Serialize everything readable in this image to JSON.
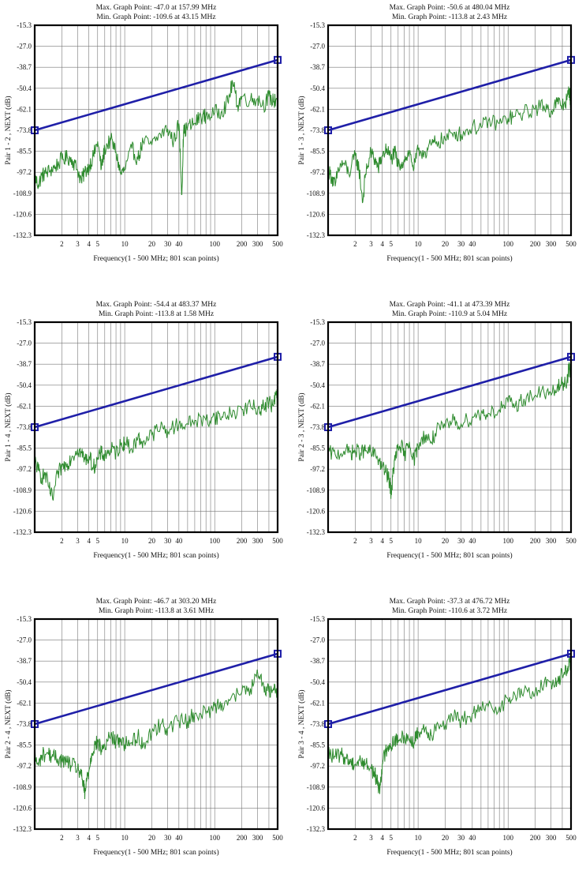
{
  "chart_data": [
    {
      "type": "line",
      "title_max": "Max. Graph Point: -47.0 at 157.99 MHz",
      "title_min": "Min. Graph Point: -109.6 at 43.15 MHz",
      "ylabel": "Pair 1 - 2 , NEXT (dB)",
      "xlabel": "Frequency(1 - 500 MHz; 801 scan points)",
      "xscale": "log",
      "xlim": [
        1,
        500
      ],
      "ylim": [
        -132.3,
        -15.3
      ],
      "yticks": [
        "-15.3",
        "-27.0",
        "-38.7",
        "-50.4",
        "-62.1",
        "-73.8",
        "-85.5",
        "-97.2",
        "-108.9",
        "-120.6",
        "-132.3"
      ],
      "xticks": [
        "2",
        "3",
        "4",
        "5",
        "10",
        "20",
        "30",
        "40",
        "100",
        "200",
        "300",
        "500"
      ],
      "series": [
        {
          "kind": "limit",
          "color": "#1f1fa8",
          "x": [
            1,
            500
          ],
          "y": [
            -73.8,
            -34.6
          ]
        },
        {
          "kind": "measured",
          "color": "#2e8b2e",
          "x": [
            1,
            1.1,
            1.2,
            1.3,
            1.5,
            1.7,
            2,
            2.3,
            2.6,
            3,
            3.3,
            3.6,
            4,
            4.5,
            5,
            5.5,
            6,
            7,
            8,
            9,
            10,
            12,
            14,
            16,
            20,
            25,
            30,
            35,
            40,
            43.15,
            45,
            50,
            60,
            70,
            80,
            100,
            120,
            140,
            157.99,
            180,
            200,
            250,
            300,
            350,
            400,
            450,
            500
          ],
          "y": [
            -100,
            -104,
            -99,
            -98,
            -96,
            -94,
            -90,
            -89,
            -90,
            -96,
            -102,
            -97,
            -94,
            -88,
            -80,
            -95,
            -84,
            -79,
            -86,
            -98,
            -96,
            -84,
            -90,
            -80,
            -82,
            -76,
            -73,
            -80,
            -70,
            -109.6,
            -75,
            -72,
            -70,
            -66,
            -66,
            -64,
            -63,
            -58,
            -47,
            -60,
            -55,
            -57,
            -56,
            -60,
            -55,
            -58,
            -55
          ]
        }
      ]
    },
    {
      "type": "line",
      "title_max": "Max. Graph Point: -50.6 at 480.04 MHz",
      "title_min": "Min. Graph Point: -113.8 at 2.43 MHz",
      "ylabel": "Pair 1 - 3 , NEXT (dB)",
      "xlabel": "Frequency(1 - 500 MHz; 801 scan points)",
      "xscale": "log",
      "xlim": [
        1,
        500
      ],
      "ylim": [
        -132.3,
        -15.3
      ],
      "yticks": [
        "-15.3",
        "-27.0",
        "-38.7",
        "-50.4",
        "-62.1",
        "-73.8",
        "-85.5",
        "-97.2",
        "-108.9",
        "-120.6",
        "-132.3"
      ],
      "xticks": [
        "2",
        "3",
        "4",
        "5",
        "10",
        "20",
        "30",
        "40",
        "100",
        "200",
        "300",
        "500"
      ],
      "series": [
        {
          "kind": "limit",
          "color": "#1f1fa8",
          "x": [
            1,
            500
          ],
          "y": [
            -73.8,
            -34.6
          ]
        },
        {
          "kind": "measured",
          "color": "#2e8b2e",
          "x": [
            1,
            1.1,
            1.2,
            1.3,
            1.5,
            1.7,
            2,
            2.2,
            2.43,
            2.6,
            3,
            3.3,
            3.6,
            4,
            4.5,
            5,
            5.5,
            6,
            7,
            8,
            9,
            10,
            12,
            14,
            16,
            20,
            25,
            30,
            40,
            50,
            60,
            80,
            100,
            120,
            150,
            200,
            250,
            300,
            350,
            400,
            450,
            480.04,
            500
          ],
          "y": [
            -96,
            -100,
            -105,
            -95,
            -92,
            -98,
            -88,
            -95,
            -113.8,
            -98,
            -86,
            -90,
            -95,
            -88,
            -84,
            -90,
            -86,
            -94,
            -90,
            -86,
            -95,
            -85,
            -86,
            -82,
            -80,
            -79,
            -75,
            -76,
            -72,
            -72,
            -69,
            -70,
            -67,
            -66,
            -64,
            -62,
            -60,
            -63,
            -58,
            -60,
            -57,
            -50.6,
            -62
          ]
        }
      ]
    },
    {
      "type": "line",
      "title_max": "Max. Graph Point: -54.4 at 483.37 MHz",
      "title_min": "Min. Graph Point: -113.8 at 1.58 MHz",
      "ylabel": "Pair 1 - 4 , NEXT (dB)",
      "xlabel": "Frequency(1 - 500 MHz; 801 scan points)",
      "xscale": "log",
      "xlim": [
        1,
        500
      ],
      "ylim": [
        -132.3,
        -15.3
      ],
      "yticks": [
        "-15.3",
        "-27.0",
        "-38.7",
        "-50.4",
        "-62.1",
        "-73.8",
        "-85.5",
        "-97.2",
        "-108.9",
        "-120.6",
        "-132.3"
      ],
      "xticks": [
        "2",
        "3",
        "4",
        "5",
        "10",
        "20",
        "30",
        "40",
        "100",
        "200",
        "300",
        "500"
      ],
      "series": [
        {
          "kind": "limit",
          "color": "#1f1fa8",
          "x": [
            1,
            500
          ],
          "y": [
            -73.8,
            -34.6
          ]
        },
        {
          "kind": "measured",
          "color": "#2e8b2e",
          "x": [
            1,
            1.1,
            1.2,
            1.3,
            1.45,
            1.58,
            1.8,
            2,
            2.3,
            2.6,
            3,
            3.3,
            3.6,
            4,
            4.5,
            5,
            5.5,
            6,
            7,
            8,
            9,
            10,
            12,
            14,
            16,
            20,
            25,
            30,
            40,
            50,
            60,
            80,
            100,
            120,
            150,
            200,
            250,
            300,
            350,
            400,
            450,
            483.37,
            500
          ],
          "y": [
            -92,
            -98,
            -102,
            -100,
            -108,
            -113.8,
            -100,
            -96,
            -94,
            -90,
            -86,
            -88,
            -92,
            -90,
            -96,
            -92,
            -88,
            -90,
            -86,
            -88,
            -84,
            -82,
            -86,
            -80,
            -82,
            -78,
            -74,
            -76,
            -72,
            -72,
            -70,
            -70,
            -68,
            -68,
            -66,
            -64,
            -62,
            -64,
            -62,
            -60,
            -62,
            -54.4,
            -60
          ]
        }
      ]
    },
    {
      "type": "line",
      "title_max": "Max. Graph Point: -41.1 at 473.39 MHz",
      "title_min": "Min. Graph Point: -110.9 at 5.04 MHz",
      "ylabel": "Pair 2 - 3 , NEXT (dB)",
      "xlabel": "Frequency(1 - 500 MHz; 801 scan points)",
      "xscale": "log",
      "xlim": [
        1,
        500
      ],
      "ylim": [
        -132.3,
        -15.3
      ],
      "yticks": [
        "-15.3",
        "-27.0",
        "-38.7",
        "-50.4",
        "-62.1",
        "-73.8",
        "-85.5",
        "-97.2",
        "-108.9",
        "-120.6",
        "-132.3"
      ],
      "xticks": [
        "2",
        "3",
        "4",
        "5",
        "10",
        "20",
        "30",
        "40",
        "100",
        "200",
        "300",
        "500"
      ],
      "series": [
        {
          "kind": "limit",
          "color": "#1f1fa8",
          "x": [
            1,
            500
          ],
          "y": [
            -73.8,
            -34.6
          ]
        },
        {
          "kind": "measured",
          "color": "#2e8b2e",
          "x": [
            1,
            1.2,
            1.5,
            1.8,
            2,
            2.3,
            2.6,
            3,
            3.5,
            4,
            4.5,
            4.8,
            5.04,
            5.3,
            5.6,
            6,
            6.5,
            7,
            8,
            9,
            10,
            12,
            14,
            16,
            20,
            25,
            30,
            40,
            50,
            60,
            80,
            100,
            120,
            150,
            200,
            250,
            300,
            350,
            400,
            450,
            473.39,
            500
          ],
          "y": [
            -88,
            -89,
            -87,
            -88,
            -87,
            -88,
            -87,
            -88,
            -90,
            -96,
            -100,
            -104,
            -110.9,
            -98,
            -90,
            -86,
            -84,
            -90,
            -82,
            -92,
            -84,
            -78,
            -82,
            -76,
            -74,
            -70,
            -72,
            -68,
            -66,
            -66,
            -64,
            -60,
            -62,
            -58,
            -56,
            -54,
            -56,
            -52,
            -50,
            -48,
            -41.1,
            -46
          ]
        }
      ]
    },
    {
      "type": "line",
      "title_max": "Max. Graph Point: -46.7 at 303.20 MHz",
      "title_min": "Min. Graph Point: -113.8 at 3.61 MHz",
      "ylabel": "Pair 2 - 4 , NEXT (dB)",
      "xlabel": "Frequency(1 - 500 MHz; 801 scan points)",
      "xscale": "log",
      "xlim": [
        1,
        500
      ],
      "ylim": [
        -132.3,
        -15.3
      ],
      "yticks": [
        "-15.3",
        "-27.0",
        "-38.7",
        "-50.4",
        "-62.1",
        "-73.8",
        "-85.5",
        "-97.2",
        "-108.9",
        "-120.6",
        "-132.3"
      ],
      "xticks": [
        "2",
        "3",
        "4",
        "5",
        "10",
        "20",
        "30",
        "40",
        "100",
        "200",
        "300",
        "500"
      ],
      "series": [
        {
          "kind": "limit",
          "color": "#1f1fa8",
          "x": [
            1,
            500
          ],
          "y": [
            -73.8,
            -34.6
          ]
        },
        {
          "kind": "measured",
          "color": "#2e8b2e",
          "x": [
            1,
            1.1,
            1.2,
            1.4,
            1.6,
            1.8,
            2,
            2.3,
            2.6,
            3,
            3.3,
            3.5,
            3.61,
            3.8,
            4,
            4.3,
            4.6,
            5,
            5.5,
            6,
            7,
            8,
            9,
            10,
            12,
            14,
            16,
            20,
            25,
            30,
            40,
            50,
            60,
            80,
            100,
            120,
            150,
            200,
            250,
            303.2,
            350,
            400,
            450,
            500
          ],
          "y": [
            -92,
            -97,
            -91,
            -90,
            -92,
            -93,
            -94,
            -95,
            -97,
            -98,
            -103,
            -108,
            -113.8,
            -104,
            -100,
            -90,
            -86,
            -84,
            -88,
            -86,
            -80,
            -84,
            -82,
            -85,
            -84,
            -80,
            -86,
            -78,
            -74,
            -76,
            -72,
            -72,
            -68,
            -68,
            -64,
            -62,
            -60,
            -56,
            -54,
            -46.7,
            -52,
            -56,
            -54,
            -55
          ]
        }
      ]
    },
    {
      "type": "line",
      "title_max": "Max. Graph Point: -37.3 at 476.72 MHz",
      "title_min": "Min. Graph Point: -110.6 at 3.72 MHz",
      "ylabel": "Pair 3 - 4 , NEXT (dB)",
      "xlabel": "Frequency(1 - 500 MHz; 801 scan points)",
      "xscale": "log",
      "xlim": [
        1,
        500
      ],
      "ylim": [
        -132.3,
        -15.3
      ],
      "yticks": [
        "-15.3",
        "-27.0",
        "-38.7",
        "-50.4",
        "-62.1",
        "-73.8",
        "-85.5",
        "-97.2",
        "-108.9",
        "-120.6",
        "-132.3"
      ],
      "xticks": [
        "2",
        "3",
        "4",
        "5",
        "10",
        "20",
        "30",
        "40",
        "100",
        "200",
        "300",
        "500"
      ],
      "series": [
        {
          "kind": "limit",
          "color": "#1f1fa8",
          "x": [
            1,
            500
          ],
          "y": [
            -73.8,
            -34.6
          ]
        },
        {
          "kind": "measured",
          "color": "#2e8b2e",
          "x": [
            1,
            1.2,
            1.4,
            1.6,
            1.8,
            2,
            2.3,
            2.6,
            3,
            3.3,
            3.5,
            3.72,
            4,
            4.3,
            4.6,
            5,
            5.5,
            6,
            7,
            8,
            9,
            10,
            12,
            14,
            16,
            20,
            25,
            30,
            40,
            50,
            60,
            80,
            100,
            120,
            150,
            200,
            250,
            300,
            350,
            400,
            450,
            476.72,
            500
          ],
          "y": [
            -90,
            -92,
            -91,
            -93,
            -95,
            -96,
            -94,
            -96,
            -98,
            -102,
            -105,
            -110.6,
            -96,
            -90,
            -86,
            -86,
            -82,
            -84,
            -80,
            -82,
            -84,
            -78,
            -76,
            -80,
            -74,
            -74,
            -70,
            -72,
            -68,
            -66,
            -64,
            -64,
            -60,
            -58,
            -56,
            -56,
            -52,
            -50,
            -50,
            -46,
            -44,
            -37.3,
            -44
          ]
        }
      ]
    }
  ]
}
